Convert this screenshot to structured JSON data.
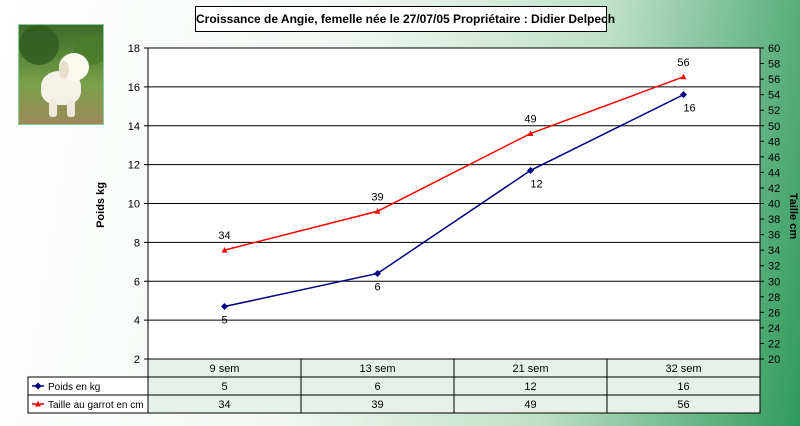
{
  "title": "Croissance de Angie, femelle née le 27/07/05  Propriétaire : Didier Delpech",
  "photo": {
    "icon": "dog-photo"
  },
  "chart_data": {
    "type": "line",
    "categories": [
      "9 sem",
      "13 sem",
      "21 sem",
      "32 sem"
    ],
    "series": [
      {
        "name": "Poids en kg",
        "values": [
          5,
          6,
          12,
          16
        ],
        "axis": "left",
        "color": "#000080",
        "marker": "diamond"
      },
      {
        "name": "Taille au garrot en cm",
        "values": [
          34,
          39,
          49,
          56
        ],
        "axis": "right",
        "color": "#ff0000",
        "marker": "triangle"
      }
    ],
    "data_point_values": [
      [
        4.7,
        6.4,
        11.7,
        15.6
      ],
      [
        34,
        39,
        49,
        56.3
      ]
    ],
    "ylabel_left": "Poids kg",
    "ylabel_right": "Taille cm",
    "ylim_left": [
      2,
      18
    ],
    "yticks_left": [
      2,
      4,
      6,
      8,
      10,
      12,
      14,
      16,
      18
    ],
    "ylim_right": [
      20,
      60
    ],
    "yticks_right": [
      20,
      22,
      24,
      26,
      28,
      30,
      32,
      34,
      36,
      38,
      40,
      42,
      44,
      46,
      48,
      50,
      52,
      54,
      56,
      58,
      60
    ],
    "grid": "horizontal",
    "legend": "data-table"
  }
}
